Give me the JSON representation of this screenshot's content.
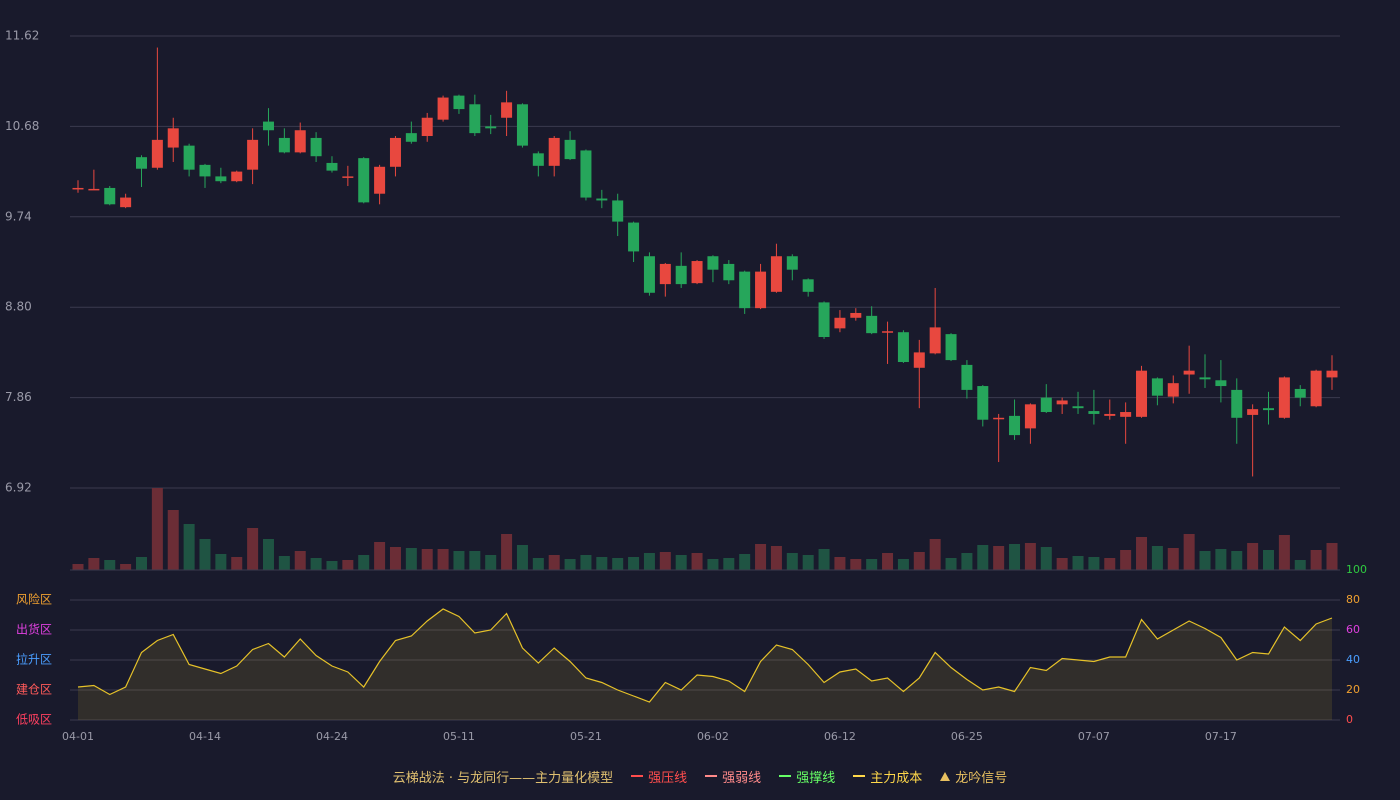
{
  "chart_data": [
    {
      "type": "candlestick",
      "categories": [
        "04-01",
        null,
        null,
        null,
        null,
        null,
        null,
        null,
        "04-14",
        null,
        null,
        null,
        null,
        null,
        null,
        null,
        "04-24",
        null,
        null,
        null,
        null,
        null,
        null,
        null,
        "05-11",
        null,
        null,
        null,
        null,
        null,
        null,
        null,
        "05-21",
        null,
        null,
        null,
        null,
        null,
        null,
        null,
        "06-02",
        null,
        null,
        null,
        null,
        null,
        null,
        null,
        "06-12",
        null,
        null,
        null,
        null,
        null,
        null,
        null,
        "06-25",
        null,
        null,
        null,
        null,
        null,
        null,
        null,
        "07-07",
        null,
        null,
        null,
        null,
        null,
        null,
        null,
        "07-17",
        null,
        null,
        null,
        null,
        null,
        null,
        null
      ],
      "open": [
        10.04,
        10.03,
        10.04,
        9.84,
        10.36,
        10.25,
        10.46,
        10.48,
        10.28,
        10.16,
        10.11,
        10.23,
        10.73,
        10.56,
        10.41,
        10.56,
        10.3,
        10.15,
        10.35,
        9.98,
        10.26,
        10.61,
        10.58,
        10.75,
        11.0,
        10.91,
        10.68,
        10.77,
        10.91,
        10.4,
        10.27,
        10.54,
        10.43,
        9.93,
        9.91,
        9.68,
        9.33,
        9.04,
        9.23,
        9.05,
        9.33,
        9.25,
        9.17,
        8.79,
        8.96,
        9.33,
        9.09,
        8.85,
        8.58,
        8.69,
        8.71,
        8.54,
        8.54,
        8.17,
        8.32,
        8.52,
        8.2,
        7.98,
        7.64,
        7.67,
        7.54,
        7.86,
        7.79,
        7.77,
        7.72,
        7.67,
        7.66,
        7.66,
        8.06,
        7.87,
        8.1,
        8.07,
        8.04,
        7.94,
        7.68,
        7.75,
        7.65,
        7.95,
        7.77,
        8.07
      ],
      "high": [
        10.12,
        10.23,
        10.06,
        9.98,
        10.38,
        11.5,
        10.77,
        10.5,
        10.29,
        10.25,
        10.22,
        10.66,
        10.87,
        10.66,
        10.72,
        10.62,
        10.37,
        10.27,
        10.36,
        10.28,
        10.58,
        10.73,
        10.82,
        11.0,
        11.01,
        11.01,
        10.8,
        11.05,
        10.92,
        10.42,
        10.58,
        10.63,
        10.44,
        10.02,
        9.98,
        9.69,
        9.37,
        9.26,
        9.37,
        9.29,
        9.34,
        9.29,
        9.18,
        9.25,
        9.46,
        9.35,
        9.1,
        8.86,
        8.77,
        8.79,
        8.81,
        8.65,
        8.56,
        8.46,
        9.0,
        8.53,
        8.25,
        7.99,
        7.69,
        7.84,
        7.8,
        8.0,
        7.86,
        7.92,
        7.94,
        7.84,
        7.81,
        8.19,
        8.07,
        8.09,
        8.4,
        8.31,
        8.25,
        8.06,
        7.79,
        7.92,
        8.08,
        7.99,
        8.15,
        8.3
      ],
      "low": [
        9.99,
        10.02,
        9.86,
        9.83,
        10.05,
        10.23,
        10.31,
        10.16,
        10.04,
        10.09,
        10.1,
        10.08,
        10.48,
        10.4,
        10.4,
        10.31,
        10.2,
        10.06,
        9.88,
        9.87,
        10.16,
        10.5,
        10.52,
        10.73,
        10.81,
        10.58,
        10.6,
        10.58,
        10.46,
        10.16,
        10.16,
        10.33,
        9.91,
        9.83,
        9.54,
        9.27,
        8.92,
        8.91,
        9.0,
        9.04,
        9.06,
        9.04,
        8.73,
        8.78,
        8.95,
        9.08,
        8.91,
        8.47,
        8.54,
        8.66,
        8.52,
        8.21,
        8.22,
        7.75,
        8.31,
        8.24,
        7.85,
        7.56,
        7.19,
        7.42,
        7.38,
        7.7,
        7.69,
        7.69,
        7.58,
        7.63,
        7.38,
        7.65,
        7.78,
        7.8,
        7.9,
        7.96,
        7.81,
        7.38,
        7.04,
        7.58,
        7.64,
        7.77,
        7.76,
        7.94
      ],
      "close": [
        10.04,
        10.03,
        9.87,
        9.94,
        10.24,
        10.54,
        10.66,
        10.23,
        10.16,
        10.11,
        10.21,
        10.54,
        10.64,
        10.41,
        10.64,
        10.37,
        10.22,
        10.16,
        9.89,
        10.26,
        10.56,
        10.52,
        10.77,
        10.98,
        10.86,
        10.61,
        10.66,
        10.93,
        10.48,
        10.27,
        10.56,
        10.34,
        9.94,
        9.91,
        9.69,
        9.38,
        8.95,
        9.25,
        9.04,
        9.28,
        9.19,
        9.08,
        8.79,
        9.17,
        9.33,
        9.19,
        8.96,
        8.49,
        8.69,
        8.74,
        8.53,
        8.55,
        8.23,
        8.33,
        8.59,
        8.25,
        7.94,
        7.63,
        7.65,
        7.47,
        7.79,
        7.71,
        7.83,
        7.75,
        7.69,
        7.69,
        7.71,
        8.14,
        7.88,
        8.01,
        8.14,
        8.05,
        7.98,
        7.65,
        7.74,
        7.73,
        8.07,
        7.86,
        8.14,
        8.14
      ],
      "volume": [
        6,
        12,
        10,
        6,
        13,
        82,
        60,
        46,
        31,
        16,
        13,
        42,
        31,
        14,
        19,
        12,
        9,
        10,
        15,
        28,
        23,
        22,
        21,
        21,
        19,
        19,
        15,
        36,
        25,
        12,
        15,
        11,
        15,
        13,
        12,
        13,
        17,
        18,
        15,
        17,
        11,
        12,
        16,
        26,
        24,
        17,
        15,
        21,
        13,
        11,
        11,
        17,
        11,
        18,
        31,
        12,
        17,
        25,
        24,
        26,
        27,
        23,
        12,
        14,
        13,
        12,
        20,
        33,
        24,
        22,
        36,
        19,
        21,
        19,
        27,
        20,
        35,
        10,
        20,
        27
      ],
      "ylim": [
        6.92,
        11.62
      ],
      "yticks": [
        11.62,
        10.68,
        9.74,
        {
          "value": 8.8,
          "label": "8.80"
        },
        7.86,
        6.92
      ],
      "up_color": "#e8483f",
      "down_color": "#26a65b",
      "volume_up_color": "#6b2d36",
      "volume_down_color": "#1f5443"
    },
    {
      "type": "line",
      "values": [
        22,
        23,
        17,
        22,
        45,
        53,
        57,
        37,
        34,
        31,
        36,
        47,
        51,
        42,
        54,
        43,
        36,
        32,
        22,
        39,
        53,
        56,
        66,
        74,
        69,
        58,
        60,
        71,
        48,
        38,
        48,
        39,
        28,
        25,
        20,
        16,
        12,
        25,
        20,
        30,
        29,
        26,
        19,
        39,
        50,
        47,
        37,
        25,
        32,
        34,
        26,
        28,
        19,
        28,
        45,
        35,
        27,
        20,
        22,
        19,
        35,
        33,
        41,
        40,
        39,
        42,
        42,
        67,
        54,
        60,
        66,
        61,
        55,
        40,
        45,
        44,
        62,
        53,
        64,
        68
      ],
      "color": "#e6c229",
      "ylim": [
        0,
        100
      ],
      "yticks": [
        0,
        20,
        40,
        60,
        80,
        100
      ],
      "ytick_colors": [
        "#ff4d4d",
        "#f0a030",
        "#4a9eff",
        "#e040e0",
        "#f0a030",
        "#2ecc40"
      ],
      "zones": [
        {
          "label": "风险区",
          "value": 80,
          "color": "#f0a030"
        },
        {
          "label": "出货区",
          "value": 60,
          "color": "#e040e0"
        },
        {
          "label": "拉升区",
          "value": 40,
          "color": "#4a9eff"
        },
        {
          "label": "建仓区",
          "value": 20,
          "color": "#ff5a5a"
        },
        {
          "label": "低吸区",
          "value": 0,
          "color": "#ff4060"
        }
      ]
    }
  ],
  "legend": {
    "title": "云梯战法 · 与龙同行——主力量化模型",
    "items": [
      {
        "name": "强压线",
        "color": "#ff4d4d",
        "style": "solid"
      },
      {
        "name": "强弱线",
        "color": "#ff8a8a",
        "style": "dashed"
      },
      {
        "name": "强撑线",
        "color": "#66ff66",
        "style": "solid"
      },
      {
        "name": "主力成本",
        "color": "#ffd84a",
        "style": "dashed"
      },
      {
        "name": "龙吟信号",
        "color": "#e8c060",
        "style": "triangle"
      }
    ]
  }
}
